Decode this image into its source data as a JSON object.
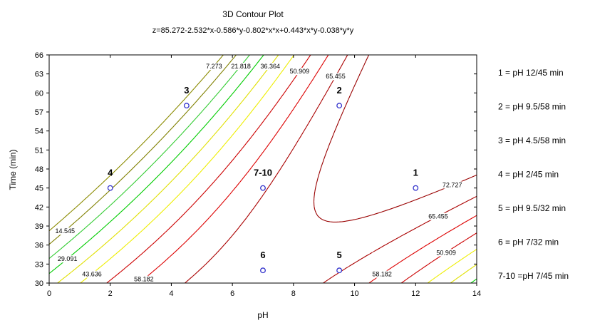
{
  "chart_data": {
    "type": "contour",
    "title": "3D Contour Plot",
    "subtitle": "z=85.272-2.532*x-0.586*y-0.802*x*x+0.443*x*y-0.038*y*y",
    "xlabel": "pH",
    "ylabel": "Time (min)",
    "xlim": [
      0,
      14
    ],
    "ylim": [
      30,
      66
    ],
    "x_ticks": [
      "0",
      "2",
      "4",
      "6",
      "8",
      "10",
      "12",
      "14"
    ],
    "y_ticks": [
      "30",
      "33",
      "36",
      "39",
      "42",
      "45",
      "48",
      "51",
      "54",
      "57",
      "60",
      "63",
      "66"
    ],
    "grid": false,
    "contours": [
      {
        "label": "7.273",
        "value": 7.273,
        "color": "#8b8b00",
        "dashed": true
      },
      {
        "label": "14.545",
        "value": 14.545,
        "color": "#808000",
        "dashed": false
      },
      {
        "label": "21.818",
        "value": 21.818,
        "color": "#33cc33",
        "dashed": true
      },
      {
        "label": "29.091",
        "value": 29.091,
        "color": "#00cc00",
        "dashed": false
      },
      {
        "label": "36.364",
        "value": 36.364,
        "color": "#e0e000",
        "dashed": true
      },
      {
        "label": "43.636",
        "value": 43.636,
        "color": "#eeee00",
        "dashed": false
      },
      {
        "label": "50.909",
        "value": 50.909,
        "color": "#cc0000",
        "dashed": true
      },
      {
        "label": "58.182",
        "value": 58.182,
        "color": "#dd0000",
        "dashed": false
      },
      {
        "label": "65.455",
        "value": 65.455,
        "color": "#aa0000",
        "dashed": true
      },
      {
        "label": "72.727",
        "value": 72.727,
        "color": "#990000",
        "dashed": false
      }
    ],
    "points": [
      {
        "label": "1",
        "x": 12,
        "y": 45
      },
      {
        "label": "2",
        "x": 9.5,
        "y": 58
      },
      {
        "label": "3",
        "x": 4.5,
        "y": 58
      },
      {
        "label": "4",
        "x": 2,
        "y": 45
      },
      {
        "label": "5",
        "x": 9.5,
        "y": 32
      },
      {
        "label": "6",
        "x": 7,
        "y": 32
      },
      {
        "label": "7-10",
        "x": 7,
        "y": 45
      }
    ],
    "point_color": "#3333cc",
    "legend": [
      "1 = pH 12/45 min",
      "2 = pH 9.5/58 min",
      "3 = pH 4.5/58 min",
      "4 = pH 2/45 min",
      "5 = pH 9.5/32 min",
      "6 = pH 7/32 min",
      "7-10 =pH 7/45 min"
    ],
    "legend_position": "right"
  }
}
